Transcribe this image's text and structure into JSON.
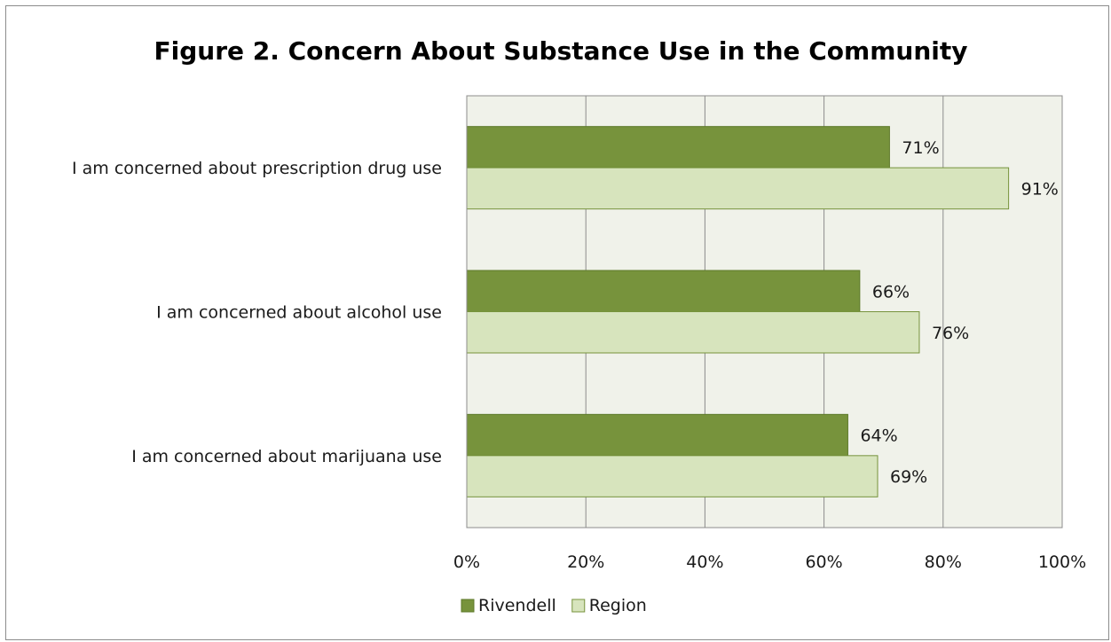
{
  "chart_data": {
    "type": "bar",
    "orientation": "horizontal",
    "title": "Figure 2. Concern About Substance Use in the Community",
    "categories": [
      "I am concerned about prescription drug use",
      "I am concerned about alcohol use",
      "I am concerned about marijuana use"
    ],
    "series": [
      {
        "name": "Rivendell",
        "values": [
          71,
          66,
          64
        ],
        "labels": [
          "71%",
          "66%",
          "64%"
        ],
        "color": "#77933c",
        "stroke": "#5e7a2a"
      },
      {
        "name": "Region",
        "values": [
          91,
          76,
          69
        ],
        "labels": [
          "91%",
          "76%",
          "69%"
        ],
        "color": "#d7e4bd",
        "stroke": "#77933c"
      }
    ],
    "xlim": [
      0,
      100
    ],
    "x_ticks": [
      0,
      20,
      40,
      60,
      80,
      100
    ],
    "x_tick_labels": [
      "0%",
      "20%",
      "40%",
      "60%",
      "80%",
      "100%"
    ],
    "plot_background": "#f0f2ea",
    "gridlines": true,
    "legend_position": "bottom"
  }
}
